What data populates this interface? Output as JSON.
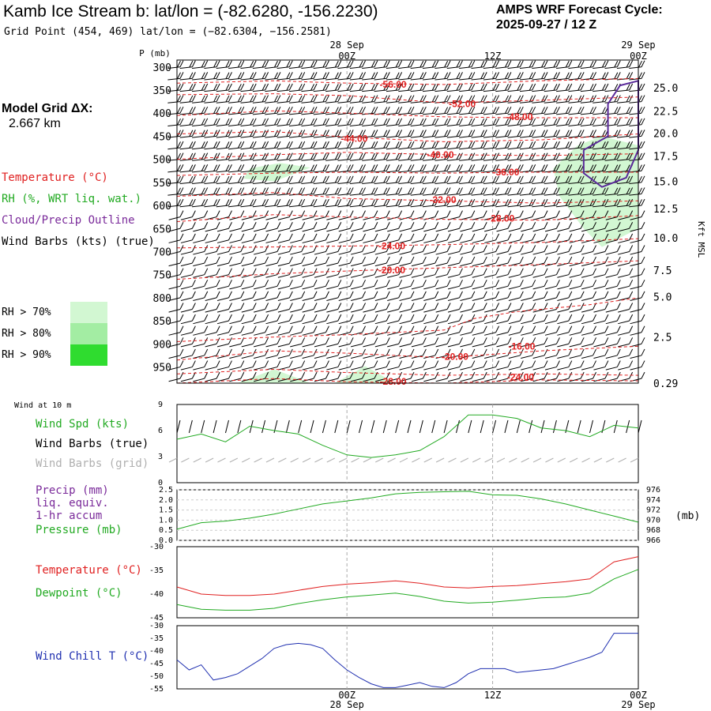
{
  "header": {
    "title": "Kamb Ice Stream b:  lat/lon = (-82.6280, -156.2230)",
    "subtitle": "Grid Point (454, 469) lat/lon = (−82.6304, −156.2581)",
    "cycle_line1": "AMPS WRF Forecast Cycle:",
    "cycle_line2": "2025-09-27 / 12  Z"
  },
  "left_panel": {
    "grid_label": "Model Grid ΔX:",
    "grid_value": "2.667 km",
    "legend": [
      {
        "text": "Temperature (°C)",
        "color": "#e02020"
      },
      {
        "text": "RH (%, WRT liq. wat.)",
        "color": "#22aa22"
      },
      {
        "text": "Cloud/Precip Outline",
        "color": "#7a2a9a"
      },
      {
        "text": "Wind Barbs (kts) (true)",
        "color": "#000000"
      }
    ],
    "rh_levels": [
      {
        "text": "RH > 70%",
        "color": "#d2f7d2"
      },
      {
        "text": "RH > 80%",
        "color": "#a3eda3"
      },
      {
        "text": "RH > 90%",
        "color": "#2fdc2f"
      }
    ]
  },
  "time_axis": {
    "top_labels": [
      {
        "date": "28 Sep",
        "time": "00Z"
      },
      {
        "date": "",
        "time": "12Z"
      },
      {
        "date": "29 Sep",
        "time": "00Z"
      }
    ],
    "bottom_labels": [
      {
        "time": "00Z",
        "date": "28 Sep"
      },
      {
        "time": "12Z",
        "date": ""
      },
      {
        "time": "00Z",
        "date": "29 Sep"
      }
    ]
  },
  "chart_data": [
    {
      "type": "heatmap",
      "left_axis_title": "P (mb)",
      "right_axis_title": "Kft MSL",
      "pressure_levels": [
        300,
        350,
        400,
        450,
        500,
        550,
        600,
        650,
        700,
        750,
        800,
        850,
        900,
        950
      ],
      "height_ticks": [
        "25.0",
        "22.5",
        "20.0",
        "17.5",
        "15.0",
        "12.5",
        "10.0",
        "7.5",
        "5.0",
        "2.5",
        "0.29"
      ],
      "height_tick_pressures": [
        345,
        395,
        443,
        493,
        548,
        607,
        670,
        740,
        798,
        885,
        985
      ],
      "x_range_hours": [
        -14,
        24
      ],
      "y_range_mb": [
        285,
        985
      ],
      "temperature_labels": [
        {
          "text": "-56.00",
          "hour": 3.8,
          "p": 338
        },
        {
          "text": "-52.00",
          "hour": 9.5,
          "p": 380
        },
        {
          "text": "-48.00",
          "hour": 14.2,
          "p": 408
        },
        {
          "text": "-44.00",
          "hour": 0.6,
          "p": 455
        },
        {
          "text": "-40.00",
          "hour": 7.7,
          "p": 490
        },
        {
          "text": "-36.00",
          "hour": 13.1,
          "p": 528
        },
        {
          "text": "-32.00",
          "hour": 7.9,
          "p": 588
        },
        {
          "text": "-28.00",
          "hour": 12.7,
          "p": 628
        },
        {
          "text": "-24.00",
          "hour": 3.7,
          "p": 688
        },
        {
          "text": "-20.00",
          "hour": 3.7,
          "p": 740
        },
        {
          "text": "-16.00",
          "hour": 14.4,
          "p": 905
        },
        {
          "text": "-20.00",
          "hour": 8.9,
          "p": 928
        },
        {
          "text": "-24.00",
          "hour": 14.3,
          "p": 972
        },
        {
          "text": "-28.00",
          "hour": 3.8,
          "p": 982
        }
      ],
      "temperature_contours": [
        {
          "value": -56,
          "points": [
            [
              -14,
              335
            ],
            [
              -6,
              330
            ],
            [
              0,
              335
            ],
            [
              8,
              338
            ],
            [
              16,
              330
            ],
            [
              24,
              325
            ]
          ]
        },
        {
          "value": -52,
          "points": [
            [
              -14,
              360
            ],
            [
              -6,
              358
            ],
            [
              0,
              362
            ],
            [
              8,
              378
            ],
            [
              16,
              372
            ],
            [
              24,
              365
            ]
          ]
        },
        {
          "value": -48,
          "points": [
            [
              -14,
              405
            ],
            [
              -6,
              395
            ],
            [
              0,
              400
            ],
            [
              8,
              408
            ],
            [
              14,
              410
            ],
            [
              24,
              410
            ]
          ]
        },
        {
          "value": -44,
          "points": [
            [
              -14,
              445
            ],
            [
              -6,
              440
            ],
            [
              0,
              452
            ],
            [
              8,
              462
            ],
            [
              16,
              458
            ],
            [
              24,
              445
            ]
          ]
        },
        {
          "value": -40,
          "points": [
            [
              -14,
              500
            ],
            [
              -6,
              490
            ],
            [
              0,
              485
            ],
            [
              8,
              490
            ],
            [
              16,
              492
            ],
            [
              24,
              488
            ]
          ]
        },
        {
          "value": -36,
          "points": [
            [
              -14,
              535
            ],
            [
              -6,
              530
            ],
            [
              0,
              528
            ],
            [
              8,
              530
            ],
            [
              14,
              528
            ],
            [
              24,
              528
            ]
          ]
        },
        {
          "value": -32,
          "points": [
            [
              -14,
              580
            ],
            [
              -6,
              572
            ],
            [
              0,
              585
            ],
            [
              8,
              590
            ],
            [
              16,
              595
            ],
            [
              24,
              590
            ]
          ]
        },
        {
          "value": -28,
          "points": [
            [
              -14,
              635
            ],
            [
              -6,
              620
            ],
            [
              0,
              625
            ],
            [
              8,
              630
            ],
            [
              16,
              632
            ],
            [
              24,
              622
            ]
          ]
        },
        {
          "value": -24,
          "points": [
            [
              -14,
              692
            ],
            [
              -6,
              690
            ],
            [
              0,
              688
            ],
            [
              8,
              685
            ],
            [
              16,
              680
            ],
            [
              24,
              672
            ]
          ]
        },
        {
          "value": -20,
          "points": [
            [
              -14,
              760
            ],
            [
              -6,
              748
            ],
            [
              0,
              742
            ],
            [
              8,
              735
            ],
            [
              16,
              728
            ],
            [
              24,
              720
            ]
          ]
        },
        {
          "value": -16,
          "points": [
            [
              -14,
              895
            ],
            [
              -6,
              885
            ],
            [
              0,
              880
            ],
            [
              8,
              870
            ],
            [
              10.5,
              845
            ],
            [
              14,
              830
            ],
            [
              20,
              815
            ],
            [
              24,
              800
            ]
          ]
        },
        {
          "value": -20,
          "points": [
            [
              -14,
              935
            ],
            [
              -6,
              915
            ],
            [
              0,
              920
            ],
            [
              8,
              930
            ],
            [
              16,
              915
            ],
            [
              24,
              905
            ]
          ]
        },
        {
          "value": -24,
          "points": [
            [
              -14,
              965
            ],
            [
              -6,
              955
            ],
            [
              0,
              962
            ],
            [
              8,
              968
            ],
            [
              16,
              965
            ],
            [
              24,
              968
            ]
          ]
        },
        {
          "value": -28,
          "points": [
            [
              -14,
              985
            ],
            [
              -6,
              975
            ],
            [
              0,
              982
            ],
            [
              8,
              985
            ],
            [
              16,
              978
            ],
            [
              24,
              980
            ]
          ]
        }
      ],
      "rh_regions": [
        {
          "level": "RH > 70%",
          "points": [
            [
              -8,
              520
            ],
            [
              -5.5,
              508
            ],
            [
              -3,
              518
            ],
            [
              -6,
              548
            ],
            [
              -8.5,
              542
            ]
          ]
        },
        {
          "level": "RH > 70%",
          "points": [
            [
              17,
              520
            ],
            [
              19,
              470
            ],
            [
              21,
              450
            ],
            [
              24,
              470
            ],
            [
              24,
              650
            ],
            [
              21,
              690
            ],
            [
              19.5,
              650
            ],
            [
              17.5,
              580
            ]
          ]
        },
        {
          "level": "RH > 70%",
          "points": [
            [
              -9,
              985
            ],
            [
              -6,
              955
            ],
            [
              -3,
              985
            ]
          ]
        },
        {
          "level": "RH > 70%",
          "points": [
            [
              -1,
              985
            ],
            [
              1.5,
              948
            ],
            [
              4,
              985
            ]
          ]
        }
      ],
      "cloud_outline": [
        [
          19.5,
          480
        ],
        [
          21.5,
          450
        ],
        [
          21.5,
          380
        ],
        [
          22.5,
          340
        ],
        [
          24,
          330
        ],
        [
          24,
          480
        ],
        [
          23,
          540
        ],
        [
          21,
          560
        ],
        [
          19.5,
          530
        ],
        [
          19.5,
          480
        ]
      ],
      "wind_barbs": {
        "levels_mb": [
          300,
          325,
          350,
          375,
          400,
          425,
          450,
          475,
          500,
          525,
          550,
          575,
          600,
          625,
          650,
          675,
          700,
          725,
          750,
          775,
          800,
          825,
          850,
          875,
          900,
          925,
          950,
          975
        ],
        "hours_start": -14,
        "hours_step": 1,
        "hours_end": 24,
        "speed_kts_upper": 20,
        "speed_kts_lower": 10
      }
    },
    {
      "type": "line",
      "panel_title": "Wind at 10 m",
      "y_ticks": [
        "9",
        "6",
        "3",
        "0"
      ],
      "ylim": [
        0,
        9
      ],
      "legend": [
        {
          "text": "Wind Spd (kts)",
          "color": "#22aa22"
        },
        {
          "text": "Wind Barbs (true)",
          "color": "#000000"
        },
        {
          "text": "Wind Barbs (grid)",
          "color": "#b0b0b0"
        }
      ],
      "hours": [
        -14,
        -12,
        -10,
        -8,
        -6,
        -4,
        -2,
        0,
        2,
        4,
        6,
        8,
        10,
        12,
        14,
        16,
        18,
        20,
        22,
        24
      ],
      "wind_speed_kts": [
        5.0,
        5.6,
        4.7,
        6.5,
        6.0,
        5.6,
        4.3,
        3.2,
        2.9,
        3.2,
        3.7,
        5.3,
        7.8,
        7.8,
        7.4,
        6.3,
        6.0,
        5.3,
        6.6,
        6.3
      ],
      "series": [
        {
          "name": "Wind Spd (kts)",
          "color": "#22aa22"
        }
      ]
    },
    {
      "type": "line",
      "legend": [
        {
          "text": "Precip (mm)",
          "color": "#7a2a9a"
        },
        {
          "text": "liq. equiv.",
          "color": "#7a2a9a"
        },
        {
          "text": "1-hr accum",
          "color": "#7a2a9a"
        },
        {
          "text": "Pressure (mb)",
          "color": "#22aa22"
        }
      ],
      "left_ticks": [
        "2.5",
        "2.0",
        "1.5",
        "1.0",
        "0.5",
        "0.0"
      ],
      "left_ylim": [
        0,
        2.5
      ],
      "right_ticks": [
        "976",
        "974",
        "972",
        "970",
        "968",
        "966"
      ],
      "right_ylim": [
        966,
        976
      ],
      "right_axis_title": "(mb)",
      "hours": [
        -14,
        -12,
        -10,
        -8,
        -6,
        -4,
        -2,
        0,
        2,
        4,
        6,
        8,
        10,
        12,
        14,
        16,
        18,
        20,
        22,
        24
      ],
      "pressure_mb": [
        968.2,
        969.5,
        969.8,
        970.4,
        971.2,
        972.2,
        973.2,
        973.8,
        974.4,
        975.2,
        975.5,
        975.6,
        975.7,
        975.0,
        974.9,
        974.2,
        973.2,
        972.0,
        970.8,
        969.6
      ],
      "series": [
        {
          "name": "Pressure (mb)",
          "color": "#22aa22"
        }
      ]
    },
    {
      "type": "line",
      "legend": [
        {
          "text": "Temperature (°C)",
          "color": "#e02020"
        },
        {
          "text": "Dewpoint (°C)",
          "color": "#22aa22"
        }
      ],
      "y_ticks": [
        "-30",
        "-35",
        "-40",
        "-45"
      ],
      "ylim": [
        -45,
        -30
      ],
      "hours": [
        -14,
        -12,
        -10,
        -8,
        -6,
        -4,
        -2,
        0,
        2,
        4,
        6,
        8,
        10,
        12,
        14,
        16,
        18,
        20,
        22,
        24
      ],
      "series": [
        {
          "name": "Temperature (°C)",
          "color": "#e02020",
          "values": [
            -38.5,
            -40.0,
            -40.3,
            -40.3,
            -40.0,
            -39.2,
            -38.4,
            -37.9,
            -37.6,
            -37.2,
            -37.7,
            -38.5,
            -38.7,
            -38.4,
            -38.2,
            -37.8,
            -37.4,
            -36.8,
            -33.2,
            -32.1
          ]
        },
        {
          "name": "Dewpoint (°C)",
          "color": "#22aa22",
          "values": [
            -42.2,
            -43.2,
            -43.4,
            -43.4,
            -43.0,
            -42.0,
            -41.2,
            -40.6,
            -40.2,
            -39.8,
            -40.5,
            -41.5,
            -41.9,
            -41.7,
            -41.3,
            -40.8,
            -40.6,
            -39.8,
            -36.8,
            -34.8
          ]
        }
      ]
    },
    {
      "type": "line",
      "legend": [
        {
          "text": "Wind Chill T (°C)",
          "color": "#2030b0"
        }
      ],
      "y_ticks": [
        "-30",
        "-35",
        "-40",
        "-45",
        "-50",
        "-55"
      ],
      "ylim": [
        -55,
        -30
      ],
      "hours": [
        -14,
        -13,
        -12,
        -11,
        -10,
        -9,
        -8,
        -7,
        -6,
        -5,
        -4,
        -3,
        -2,
        -1,
        0,
        1,
        2,
        3,
        4,
        5,
        6,
        7,
        8,
        9,
        10,
        11,
        12,
        13,
        14,
        15,
        16,
        17,
        18,
        19,
        20,
        21,
        22,
        23,
        24
      ],
      "series": [
        {
          "name": "Wind Chill T (°C)",
          "color": "#2030b0",
          "values": [
            -43.5,
            -47.5,
            -45.5,
            -51.5,
            -50.5,
            -49.0,
            -46.0,
            -43.0,
            -39.0,
            -37.5,
            -37.0,
            -37.5,
            -39.0,
            -43.5,
            -47.5,
            -50.5,
            -53.0,
            -54.5,
            -54.5,
            -53.5,
            -52.5,
            -54.0,
            -54.5,
            -52.5,
            -49.0,
            -47.0,
            -47.0,
            -47.0,
            -48.5,
            -48.0,
            -47.5,
            -47.0,
            -45.5,
            -44.0,
            -42.5,
            -40.5,
            -33.0,
            -33.0,
            -33.0
          ]
        }
      ]
    }
  ]
}
